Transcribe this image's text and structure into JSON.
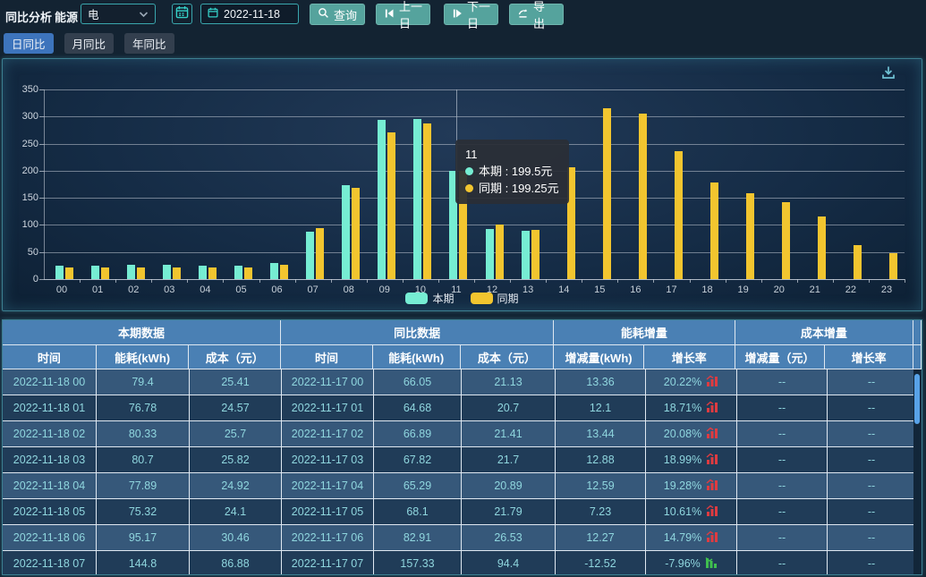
{
  "page": {
    "title": "同比分析",
    "energy_label": "能源",
    "energy_value": "电",
    "date_value": "2022-11-18"
  },
  "toolbar": {
    "query_label": "查询",
    "prev_day_label": "上一日",
    "next_day_label": "下一日",
    "export_label": "导出"
  },
  "tabs": [
    {
      "label": "日同比",
      "active": true
    },
    {
      "label": "月同比",
      "active": false
    },
    {
      "label": "年同比",
      "active": false
    }
  ],
  "chart_data": {
    "type": "bar",
    "title": "",
    "xlabel": "",
    "ylabel": "",
    "ylim": [
      0,
      350
    ],
    "ytick_interval": 50,
    "grid": true,
    "legend_position": "bottom",
    "unit": "元",
    "categories": [
      "00",
      "01",
      "02",
      "03",
      "04",
      "05",
      "06",
      "07",
      "08",
      "09",
      "10",
      "11",
      "12",
      "13",
      "14",
      "15",
      "16",
      "17",
      "18",
      "19",
      "20",
      "21",
      "22",
      "23"
    ],
    "series": [
      {
        "name": "本期",
        "color": "#76edd3",
        "values": [
          25.41,
          24.57,
          25.7,
          25.82,
          24.92,
          24.1,
          30.46,
          86.88,
          173,
          294,
          296,
          199.5,
          93,
          89,
          null,
          null,
          null,
          null,
          null,
          null,
          null,
          null,
          null,
          null
        ]
      },
      {
        "name": "同期",
        "color": "#f2c52f",
        "values": [
          21.13,
          20.7,
          21.41,
          21.7,
          20.89,
          21.79,
          26.53,
          94.4,
          168,
          270,
          287,
          199.25,
          100,
          91,
          207,
          315,
          306,
          236,
          178,
          158,
          142,
          116,
          62,
          48
        ]
      }
    ],
    "pointer_index": 11
  },
  "tooltip": {
    "title": "11",
    "items": [
      {
        "name": "本期",
        "sep": " : ",
        "value": "199.5元",
        "color": "#76edd3"
      },
      {
        "name": "同期",
        "sep": " : ",
        "value": "199.25元",
        "color": "#f2c52f"
      }
    ]
  },
  "table": {
    "groups": [
      {
        "label": "本期数据",
        "span": 3
      },
      {
        "label": "同比数据",
        "span": 3
      },
      {
        "label": "能耗增量",
        "span": 2
      },
      {
        "label": "成本增量",
        "span": 2
      }
    ],
    "columns": [
      "时间",
      "能耗(kWh)",
      "成本（元）",
      "时间",
      "能耗(kWh)",
      "成本（元）",
      "增减量(kWh)",
      "增长率",
      "增减量（元）",
      "增长率"
    ],
    "rows": [
      {
        "cells": [
          "2022-11-18 00",
          "79.4",
          "25.41",
          "2022-11-17 00",
          "66.05",
          "21.13",
          "13.36",
          "20.22%",
          "--",
          "--"
        ],
        "trend": "up"
      },
      {
        "cells": [
          "2022-11-18 01",
          "76.78",
          "24.57",
          "2022-11-17 01",
          "64.68",
          "20.7",
          "12.1",
          "18.71%",
          "--",
          "--"
        ],
        "trend": "up"
      },
      {
        "cells": [
          "2022-11-18 02",
          "80.33",
          "25.7",
          "2022-11-17 02",
          "66.89",
          "21.41",
          "13.44",
          "20.08%",
          "--",
          "--"
        ],
        "trend": "up"
      },
      {
        "cells": [
          "2022-11-18 03",
          "80.7",
          "25.82",
          "2022-11-17 03",
          "67.82",
          "21.7",
          "12.88",
          "18.99%",
          "--",
          "--"
        ],
        "trend": "up"
      },
      {
        "cells": [
          "2022-11-18 04",
          "77.89",
          "24.92",
          "2022-11-17 04",
          "65.29",
          "20.89",
          "12.59",
          "19.28%",
          "--",
          "--"
        ],
        "trend": "up"
      },
      {
        "cells": [
          "2022-11-18 05",
          "75.32",
          "24.1",
          "2022-11-17 05",
          "68.1",
          "21.79",
          "7.23",
          "10.61%",
          "--",
          "--"
        ],
        "trend": "up"
      },
      {
        "cells": [
          "2022-11-18 06",
          "95.17",
          "30.46",
          "2022-11-17 06",
          "82.91",
          "26.53",
          "12.27",
          "14.79%",
          "--",
          "--"
        ],
        "trend": "up"
      },
      {
        "cells": [
          "2022-11-18 07",
          "144.8",
          "86.88",
          "2022-11-17 07",
          "157.33",
          "94.4",
          "-12.52",
          "-7.96%",
          "--",
          "--"
        ],
        "trend": "down"
      }
    ],
    "trend_up_color": "#e03b40",
    "trend_down_color": "#3fbf4f"
  }
}
